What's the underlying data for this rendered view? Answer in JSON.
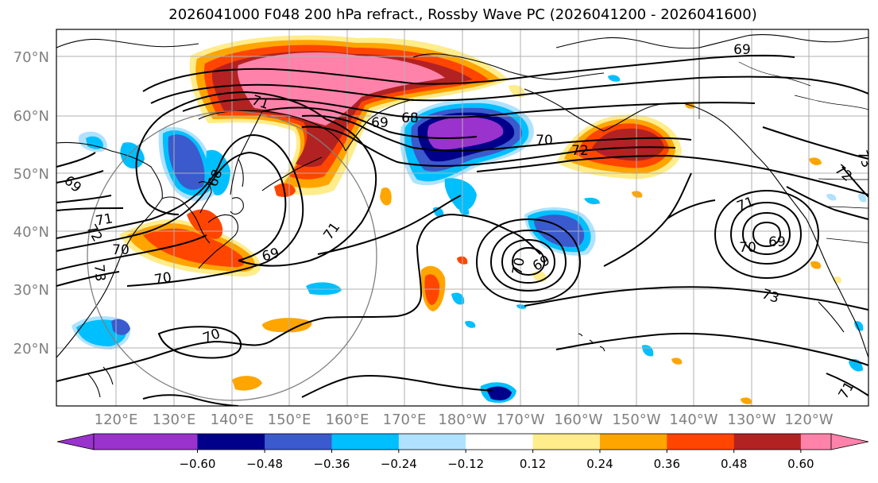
{
  "title": "2026041000 F048 200 hPa refract., Rossby Wave PC (2026041200 - 2026041600)",
  "lat_labels": [
    "70°N",
    "60°N",
    "50°N",
    "40°N",
    "30°N",
    "20°N"
  ],
  "lon_labels": [
    "120°E",
    "130°E",
    "140°E",
    "150°E",
    "160°E",
    "170°E",
    "180°W",
    "170°W",
    "160°W",
    "150°W",
    "140°W",
    "130°W",
    "120°W"
  ],
  "colorbar": {
    "ticks": [
      "−0.60",
      "−0.48",
      "−0.36",
      "−0.24",
      "−0.12",
      "0.12",
      "0.24",
      "0.36",
      "0.48",
      "0.60"
    ],
    "colors": [
      "#9a32cd",
      "#00008b",
      "#3a5acd",
      "#00bfff",
      "#b0e2ff",
      "#ffffff",
      "#ffec8b",
      "#ffa500",
      "#ff4500",
      "#b22222",
      "#ff82ab"
    ]
  },
  "contour_labels": [
    {
      "text": "69"
    },
    {
      "text": "71"
    },
    {
      "text": "68"
    },
    {
      "text": "70"
    },
    {
      "text": "72"
    },
    {
      "text": "73"
    },
    {
      "text": "69"
    },
    {
      "text": "71"
    },
    {
      "text": "70"
    },
    {
      "text": "69"
    },
    {
      "text": "72"
    },
    {
      "text": "71"
    },
    {
      "text": "70"
    },
    {
      "text": "69"
    },
    {
      "text": "73"
    },
    {
      "text": "70"
    },
    {
      "text": "71"
    },
    {
      "text": "68"
    },
    {
      "text": "69"
    },
    {
      "text": "72"
    },
    {
      "text": "69"
    },
    {
      "text": "70"
    },
    {
      "text": "70"
    },
    {
      "text": "73"
    },
    {
      "text": "71"
    }
  ]
}
